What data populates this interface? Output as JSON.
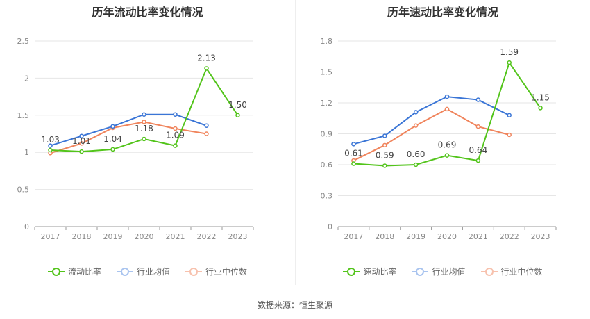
{
  "source": "数据来源：恒生聚源",
  "chart_data": [
    {
      "type": "line",
      "title": "历年流动比率变化情况",
      "categories": [
        "2017",
        "2018",
        "2019",
        "2020",
        "2021",
        "2022",
        "2023"
      ],
      "ylim": [
        0,
        2.5
      ],
      "yticks": [
        "0",
        "0.5",
        "1",
        "1.5",
        "2",
        "2.5"
      ],
      "ytick_values": [
        0,
        0.5,
        1,
        1.5,
        2,
        2.5
      ],
      "grid": true,
      "legend_position": "bottom",
      "series": [
        {
          "name": "流动比率",
          "color": "#52c41a",
          "values": [
            1.03,
            1.01,
            1.04,
            1.18,
            1.09,
            2.13,
            1.5
          ],
          "labels": [
            "1.03",
            "1.01",
            "1.04",
            "1.18",
            "1.09",
            "2.13",
            "1.50"
          ]
        },
        {
          "name": "行业均值",
          "color": "#3a75d6",
          "values": [
            1.09,
            1.22,
            1.35,
            1.51,
            1.51,
            1.36,
            null
          ]
        },
        {
          "name": "行业中位数",
          "color": "#f0845c",
          "values": [
            0.99,
            1.12,
            1.33,
            1.41,
            1.32,
            1.25,
            null
          ]
        }
      ]
    },
    {
      "type": "line",
      "title": "历年速动比率变化情况",
      "categories": [
        "2017",
        "2018",
        "2019",
        "2020",
        "2021",
        "2022",
        "2023"
      ],
      "ylim": [
        0,
        1.8
      ],
      "yticks": [
        "0",
        "0.3",
        "0.6",
        "0.9",
        "1.2",
        "1.5",
        "1.8"
      ],
      "ytick_values": [
        0,
        0.3,
        0.6,
        0.9,
        1.2,
        1.5,
        1.8
      ],
      "grid": true,
      "legend_position": "bottom",
      "series": [
        {
          "name": "速动比率",
          "color": "#52c41a",
          "values": [
            0.61,
            0.59,
            0.6,
            0.69,
            0.64,
            1.59,
            1.15
          ],
          "labels": [
            "0.61",
            "0.59",
            "0.60",
            "0.69",
            "0.64",
            "1.59",
            "1.15"
          ]
        },
        {
          "name": "行业均值",
          "color": "#3a75d6",
          "values": [
            0.8,
            0.88,
            1.11,
            1.26,
            1.23,
            1.08,
            null
          ]
        },
        {
          "name": "行业中位数",
          "color": "#f0845c",
          "values": [
            0.64,
            0.79,
            0.98,
            1.14,
            0.97,
            0.89,
            null
          ]
        }
      ]
    }
  ]
}
